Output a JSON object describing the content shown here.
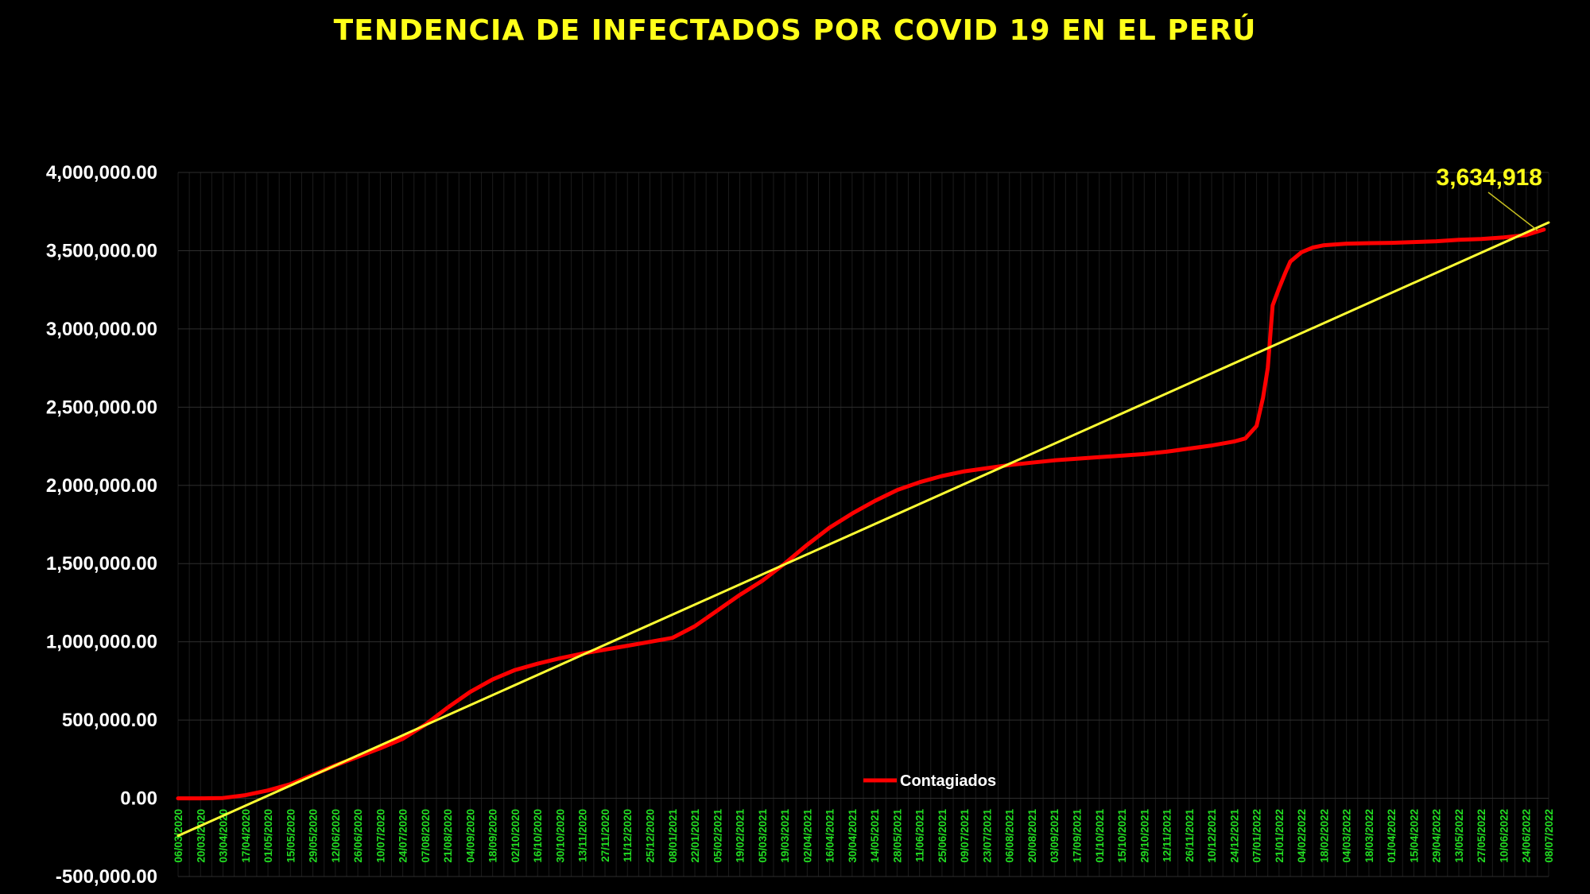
{
  "chart_data": {
    "type": "line",
    "title": "TENDENCIA DE INFECTADOS POR COVID 19 EN EL PERÚ",
    "xlabel": "",
    "ylabel": "",
    "ylim": [
      -500000,
      4000000
    ],
    "y_ticks": [
      "4,000,000.00",
      "3,500,000.00",
      "3,000,000.00",
      "2,500,000.00",
      "2,000,000.00",
      "1,500,000.00",
      "1,000,000.00",
      "500,000.00",
      "0.00",
      "-500,000.00"
    ],
    "x_ticks": [
      "06/03/2020",
      "20/03/2020",
      "03/04/2020",
      "17/04/2020",
      "01/05/2020",
      "15/05/2020",
      "29/05/2020",
      "12/06/2020",
      "26/06/2020",
      "10/07/2020",
      "24/07/2020",
      "07/08/2020",
      "21/08/2020",
      "04/09/2020",
      "18/09/2020",
      "02/10/2020",
      "16/10/2020",
      "30/10/2020",
      "13/11/2020",
      "27/11/2020",
      "11/12/2020",
      "25/12/2020",
      "08/01/2021",
      "22/01/2021",
      "05/02/2021",
      "19/02/2021",
      "05/03/2021",
      "19/03/2021",
      "02/04/2021",
      "16/04/2021",
      "30/04/2021",
      "14/05/2021",
      "28/05/2021",
      "11/06/2021",
      "25/06/2021",
      "09/07/2021",
      "23/07/2021",
      "06/08/2021",
      "20/08/2021",
      "03/09/2021",
      "17/09/2021",
      "01/10/2021",
      "15/10/2021",
      "29/10/2021",
      "12/11/2021",
      "26/11/2021",
      "10/12/2021",
      "24/12/2021",
      "07/01/2022",
      "21/01/2022",
      "04/02/2022",
      "18/02/2022",
      "04/03/2022",
      "18/03/2022",
      "01/04/2022",
      "15/04/2022",
      "29/04/2022",
      "13/05/2022",
      "27/05/2022",
      "10/06/2022",
      "24/06/2022",
      "08/07/2022"
    ],
    "grid": true,
    "legend_position": "bottom-center",
    "annotation": "3,634,918",
    "series": [
      {
        "name": "Contagiados",
        "color": "#ff0000",
        "x": [
          "06/03/2020",
          "20/03/2020",
          "03/04/2020",
          "17/04/2020",
          "01/05/2020",
          "15/05/2020",
          "29/05/2020",
          "12/06/2020",
          "26/06/2020",
          "10/07/2020",
          "24/07/2020",
          "07/08/2020",
          "21/08/2020",
          "04/09/2020",
          "18/09/2020",
          "02/10/2020",
          "16/10/2020",
          "30/10/2020",
          "13/11/2020",
          "27/11/2020",
          "11/12/2020",
          "25/12/2020",
          "08/01/2021",
          "22/01/2021",
          "05/02/2021",
          "19/02/2021",
          "05/03/2021",
          "19/03/2021",
          "02/04/2021",
          "16/04/2021",
          "30/04/2021",
          "14/05/2021",
          "28/05/2021",
          "11/06/2021",
          "25/06/2021",
          "09/07/2021",
          "23/07/2021",
          "06/08/2021",
          "20/08/2021",
          "03/09/2021",
          "17/09/2021",
          "01/10/2021",
          "15/10/2021",
          "29/10/2021",
          "12/11/2021",
          "26/11/2021",
          "10/12/2021",
          "24/12/2021",
          "31/12/2021",
          "07/01/2022",
          "11/01/2022",
          "14/01/2022",
          "17/01/2022",
          "21/01/2022",
          "25/01/2022",
          "28/01/2022",
          "04/02/2022",
          "11/02/2022",
          "18/02/2022",
          "25/02/2022",
          "04/03/2022",
          "18/03/2022",
          "01/04/2022",
          "15/04/2022",
          "29/04/2022",
          "13/05/2022",
          "27/05/2022",
          "10/06/2022",
          "24/06/2022",
          "05/07/2022"
        ],
        "y": [
          0,
          0,
          2000,
          20000,
          50000,
          90000,
          150000,
          210000,
          265000,
          320000,
          380000,
          470000,
          580000,
          680000,
          760000,
          820000,
          860000,
          895000,
          925000,
          950000,
          975000,
          1000000,
          1025000,
          1100000,
          1200000,
          1300000,
          1390000,
          1500000,
          1620000,
          1730000,
          1820000,
          1900000,
          1970000,
          2020000,
          2060000,
          2090000,
          2110000,
          2130000,
          2145000,
          2160000,
          2170000,
          2180000,
          2190000,
          2200000,
          2215000,
          2235000,
          2255000,
          2280000,
          2300000,
          2380000,
          2560000,
          2750000,
          3150000,
          3260000,
          3360000,
          3430000,
          3490000,
          3520000,
          3535000,
          3540000,
          3545000,
          3548000,
          3550000,
          3555000,
          3560000,
          3570000,
          3575000,
          3585000,
          3600000,
          3634918
        ]
      },
      {
        "name": "",
        "color": "#ffff33",
        "type": "linear-trend",
        "x": [
          "06/03/2020",
          "08/07/2022"
        ],
        "y": [
          -240000,
          3680000
        ]
      }
    ]
  }
}
